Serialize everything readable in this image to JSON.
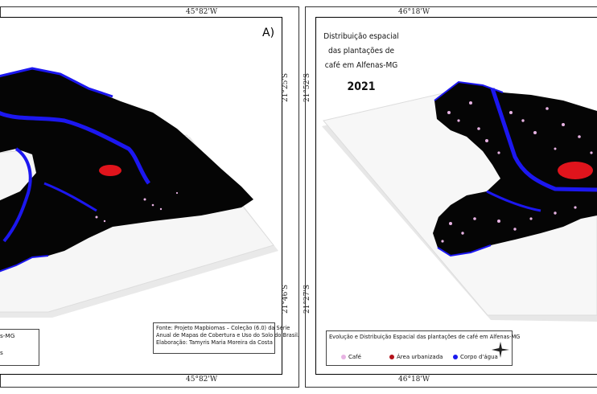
{
  "left_panel": {
    "panel_label": "A)",
    "top_coord": "45°82'W",
    "bottom_coord": "45°82'W",
    "right_coord_top": "21°25'S",
    "right_coord_bottom": "21°46'S",
    "legend_title_fragment": "s-MG",
    "legend_fragment": "s",
    "source_lines": [
      "Fonte: Projeto Mapbiomas – Coleção (6.0) da Série",
      "Anual de Mapas de Cobertura e Uso do Solo do Brasil.",
      "Elaboração: Tamyris Maria Moreira da Costa"
    ]
  },
  "right_panel": {
    "top_coord": "46°18'W",
    "bottom_coord": "46°18'W",
    "left_coord_top": "21°52'S",
    "left_coord_bottom": "21°27'S",
    "title_lines": [
      "Distribuição espacial",
      "das plantações de",
      "café em Alfenas-MG"
    ],
    "year": "2021",
    "legend_title": "Evolução e Distribuição Espacial das plantações de café em Alfenas-MG",
    "legend_items": [
      {
        "label": "Café",
        "color": "#e7b3e3"
      },
      {
        "label": "Área urbanizada",
        "color": "#b3131b"
      },
      {
        "label": "Corpo d'água",
        "color": "#1a1aee"
      }
    ]
  },
  "colors": {
    "land": "#050505",
    "water": "#1c17f0",
    "urban": "#e0141c",
    "coffee": "#e7b3e3",
    "plate": "#f4f4f4"
  }
}
